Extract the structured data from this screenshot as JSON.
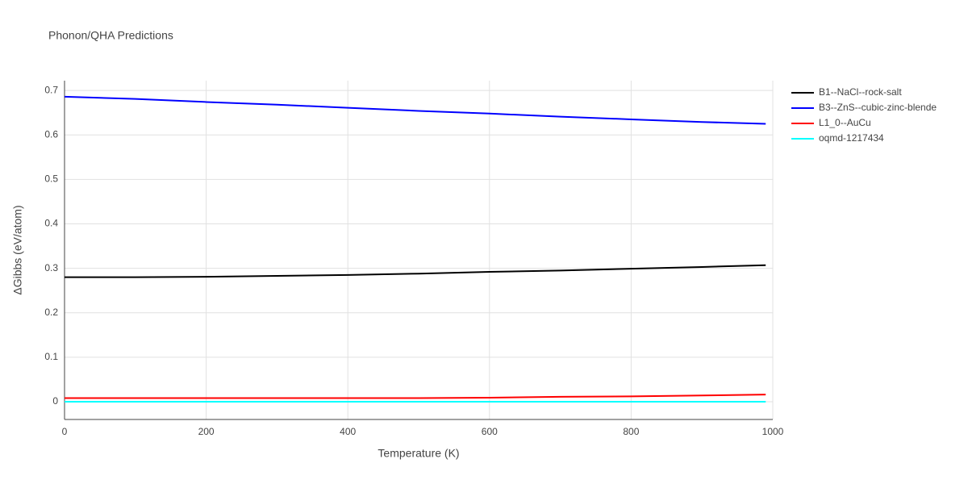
{
  "chart_data": {
    "type": "line",
    "title": "Phonon/QHA Predictions",
    "x_label": "Temperature (K)",
    "y_label": "ΔGibbs (eV/atom)",
    "x": [
      0,
      100,
      200,
      300,
      400,
      500,
      600,
      700,
      800,
      900,
      990
    ],
    "series": [
      {
        "name": "B1--NaCl--rock-salt",
        "color": "#000000",
        "values": [
          0.28,
          0.28,
          0.281,
          0.283,
          0.285,
          0.288,
          0.292,
          0.295,
          0.299,
          0.303,
          0.307
        ]
      },
      {
        "name": "B3--ZnS--cubic-zinc-blende",
        "color": "#0000ff",
        "values": [
          0.686,
          0.681,
          0.674,
          0.668,
          0.661,
          0.654,
          0.648,
          0.641,
          0.635,
          0.629,
          0.625
        ]
      },
      {
        "name": "L1_0--AuCu",
        "color": "#ff0000",
        "values": [
          0.008,
          0.008,
          0.008,
          0.008,
          0.008,
          0.008,
          0.009,
          0.011,
          0.012,
          0.014,
          0.016
        ]
      },
      {
        "name": "oqmd-1217434",
        "color": "#00ffff",
        "values": [
          0,
          0,
          0,
          0,
          0,
          0,
          0,
          0,
          0,
          0,
          0
        ]
      }
    ],
    "xlim": [
      0,
      1000
    ],
    "xticks": [
      0,
      200,
      400,
      600,
      800,
      1000
    ],
    "ylim": [
      -0.04,
      0.722
    ],
    "yticks": [
      0,
      0.1,
      0.2,
      0.3,
      0.4,
      0.5,
      0.6,
      0.7
    ],
    "grid": true
  }
}
